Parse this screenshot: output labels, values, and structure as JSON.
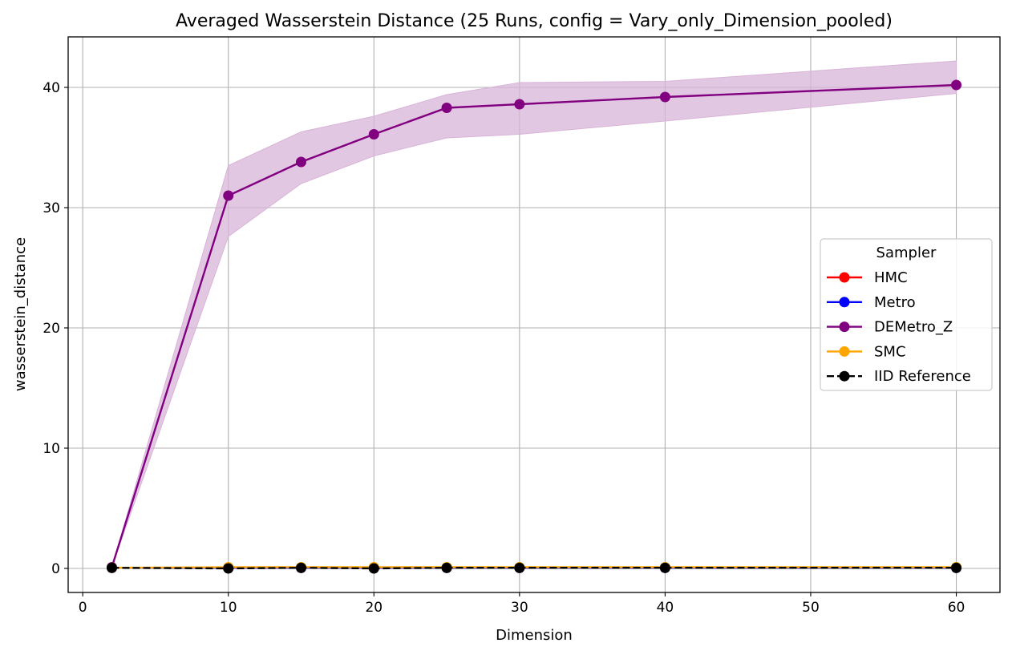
{
  "chart_data": {
    "type": "line",
    "title": "Averaged Wasserstein Distance (25 Runs, config = Vary_only_Dimension_pooled)",
    "xlabel": "Dimension",
    "ylabel": "wasserstein_distance",
    "xlim": [
      -1,
      63
    ],
    "ylim": [
      -2,
      44.2
    ],
    "xticks": [
      0,
      10,
      20,
      30,
      40,
      50,
      60
    ],
    "yticks": [
      0,
      10,
      20,
      30,
      40
    ],
    "grid": true,
    "x": [
      2,
      10,
      15,
      20,
      25,
      30,
      40,
      60
    ],
    "legend": {
      "title": "Sampler",
      "placement": "center-right"
    },
    "series": [
      {
        "name": "HMC",
        "color": "#ff0000",
        "linestyle": "solid",
        "values": [
          0.05,
          0.05,
          0.05,
          0.05,
          0.05,
          0.05,
          0.05,
          0.05
        ]
      },
      {
        "name": "Metro",
        "color": "#0000ff",
        "linestyle": "solid",
        "values": [
          0.05,
          0.05,
          0.05,
          0.05,
          0.05,
          0.05,
          0.05,
          0.05
        ]
      },
      {
        "name": "DEMetro_Z",
        "color": "#800080",
        "linestyle": "solid",
        "values": [
          0.1,
          31.0,
          33.8,
          36.1,
          38.3,
          38.6,
          39.2,
          40.2
        ],
        "band_lower": [
          0.1,
          27.6,
          32.0,
          34.3,
          35.8,
          36.1,
          37.2,
          39.5
        ],
        "band_upper": [
          0.1,
          33.5,
          36.3,
          37.6,
          39.4,
          40.4,
          40.5,
          42.2
        ],
        "band_color": "#d8b4d8"
      },
      {
        "name": "SMC",
        "color": "#ffa500",
        "linestyle": "solid",
        "values": [
          0.05,
          0.1,
          0.1,
          0.1,
          0.1,
          0.1,
          0.1,
          0.1
        ]
      },
      {
        "name": "IID Reference",
        "color": "#000000",
        "linestyle": "dashed",
        "values": [
          0.05,
          0.0,
          0.05,
          0.0,
          0.05,
          0.05,
          0.05,
          0.05
        ]
      }
    ]
  }
}
